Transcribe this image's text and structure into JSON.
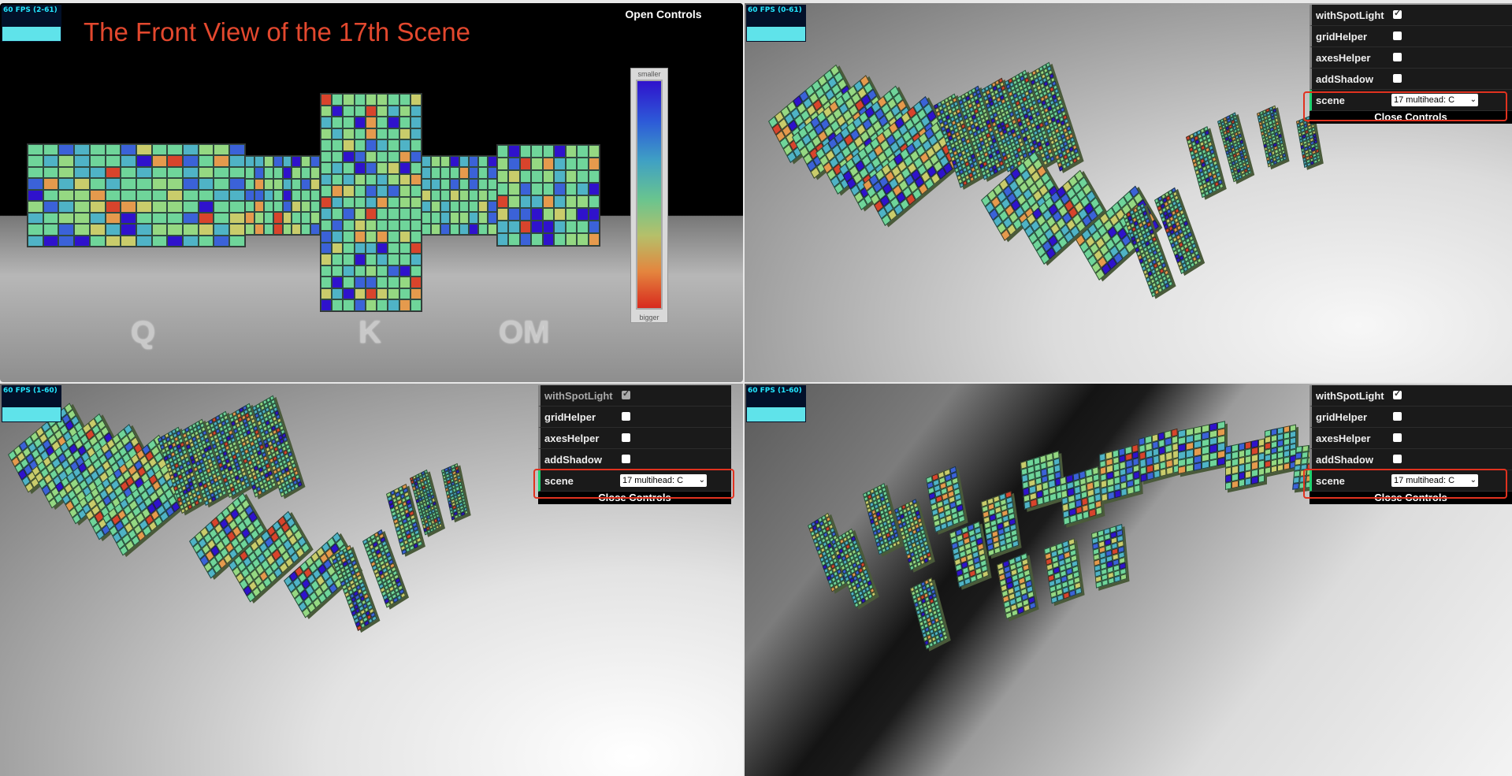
{
  "panel1": {
    "fps": "60 FPS (2-61)",
    "title": "The Front View of the 17th Scene",
    "open_controls": "Open Controls",
    "labels": {
      "q": "Q",
      "k": "K",
      "om": "OM"
    },
    "legend": {
      "top": "smaller",
      "bottom": "bigger"
    }
  },
  "panel2": {
    "fps": "60 FPS (0-61)",
    "gui": {
      "with_spot_light": "withSpotLight",
      "grid_helper": "gridHelper",
      "axes_helper": "axesHelper",
      "add_shadow": "addShadow",
      "scene": "scene",
      "scene_value": "17 multihead: C",
      "close_controls": "Close Controls"
    }
  },
  "panel3": {
    "fps": "60 FPS (1-60)",
    "gui": {
      "with_spot_light": "withSpotLight",
      "grid_helper": "gridHelper",
      "axes_helper": "axesHelper",
      "add_shadow": "addShadow",
      "scene": "scene",
      "scene_value": "17 multihead: C",
      "close_controls": "Close Controls"
    }
  },
  "panel4": {
    "fps": "60 FPS (1-60)",
    "gui": {
      "with_spot_light": "withSpotLight",
      "grid_helper": "gridHelper",
      "axes_helper": "axesHelper",
      "add_shadow": "addShadow",
      "scene": "scene",
      "scene_value": "17 multihead: C",
      "close_controls": "Close Controls"
    }
  },
  "colors": {
    "title": "#e3482e",
    "highlight": "#e1321f",
    "fps_text": "#23e7ff",
    "heat_palette": [
      "#2f12cc",
      "#3b62d8",
      "#4fb3c6",
      "#6fd59a",
      "#95d882",
      "#c9cc6b",
      "#e59a4d",
      "#d8442c"
    ]
  }
}
